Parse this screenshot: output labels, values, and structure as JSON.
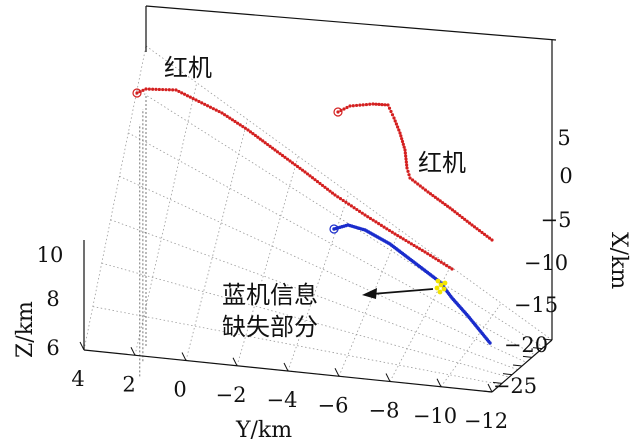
{
  "chart_data": {
    "type": "scatter3d",
    "grid": true,
    "axes": {
      "x": {
        "label": "X/km",
        "ticks": [
          "5",
          "0",
          "−5",
          "−10",
          "−15",
          "−20",
          "−25"
        ]
      },
      "y": {
        "label": "Y/km",
        "ticks": [
          "4",
          "2",
          "0",
          "−2",
          "−4",
          "−6",
          "−8",
          "−10",
          "−12"
        ]
      },
      "z": {
        "label": "Z/km",
        "ticks": [
          "10",
          "8",
          "6"
        ]
      }
    },
    "annotations": {
      "red1": "红机",
      "red2": "红机",
      "blue_missing": [
        "蓝机信息",
        "缺失部分"
      ]
    },
    "series": [
      {
        "color": "#d42020"
      },
      {
        "color": "#d42020"
      },
      {
        "color": "#1a2ccc"
      }
    ],
    "colors": {
      "red": "#d42020",
      "blue": "#1a2ccc",
      "gap": "#f2e400"
    }
  }
}
